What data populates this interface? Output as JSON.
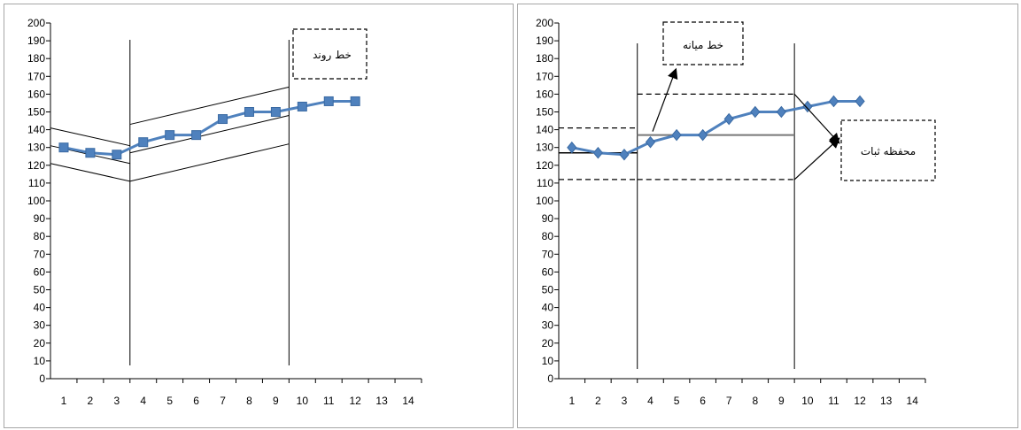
{
  "chart_data": [
    {
      "type": "line",
      "x": [
        1,
        2,
        3,
        4,
        5,
        6,
        7,
        8,
        9,
        10,
        11,
        12
      ],
      "series": [
        {
          "values": [
            130,
            127,
            126,
            133,
            137,
            137,
            146,
            150,
            150,
            153,
            156,
            156
          ],
          "marker": "square",
          "color": "#4f81bd"
        }
      ],
      "x_ticks": [
        1,
        2,
        3,
        4,
        5,
        6,
        7,
        8,
        9,
        10,
        11,
        12,
        13,
        14
      ],
      "xlim": [
        0.5,
        14.5
      ],
      "ylim": [
        0,
        200
      ],
      "y_ticks": [
        0,
        10,
        20,
        30,
        40,
        50,
        60,
        70,
        80,
        90,
        100,
        110,
        120,
        130,
        140,
        150,
        160,
        170,
        180,
        190,
        200
      ],
      "phase_lines_x": [
        3.5,
        9.5
      ],
      "trend_lines": [
        {
          "from": [
            0.5,
            141
          ],
          "to": [
            3.5,
            131
          ]
        },
        {
          "from": [
            0.5,
            131
          ],
          "to": [
            3.5,
            121
          ]
        },
        {
          "from": [
            0.5,
            121
          ],
          "to": [
            3.5,
            111
          ]
        },
        {
          "from": [
            3.5,
            143
          ],
          "to": [
            9.5,
            164
          ]
        },
        {
          "from": [
            3.5,
            127
          ],
          "to": [
            9.5,
            148
          ]
        },
        {
          "from": [
            3.5,
            111
          ],
          "to": [
            9.5,
            132
          ]
        }
      ],
      "annotations": [
        {
          "text": "خط روند",
          "points_to": null
        }
      ],
      "grid": false
    },
    {
      "type": "line",
      "x": [
        1,
        2,
        3,
        4,
        5,
        6,
        7,
        8,
        9,
        10,
        11,
        12
      ],
      "series": [
        {
          "values": [
            130,
            127,
            126,
            133,
            137,
            137,
            146,
            150,
            150,
            153,
            156,
            156
          ],
          "marker": "diamond",
          "color": "#4f81bd"
        }
      ],
      "x_ticks": [
        1,
        2,
        3,
        4,
        5,
        6,
        7,
        8,
        9,
        10,
        11,
        12,
        13,
        14
      ],
      "xlim": [
        0.5,
        14.5
      ],
      "ylim": [
        0,
        200
      ],
      "y_ticks": [
        0,
        10,
        20,
        30,
        40,
        50,
        60,
        70,
        80,
        90,
        100,
        110,
        120,
        130,
        140,
        150,
        160,
        170,
        180,
        190,
        200
      ],
      "phase_lines_x": [
        3.5,
        9.5
      ],
      "median_lines": [
        {
          "from": [
            0.5,
            127
          ],
          "to": [
            3.5,
            127
          ]
        },
        {
          "from": [
            3.5,
            137
          ],
          "to": [
            9.5,
            137
          ]
        }
      ],
      "stability_envelope": [
        {
          "from": [
            0.5,
            141
          ],
          "to": [
            3.5,
            141
          ]
        },
        {
          "from": [
            0.5,
            112
          ],
          "to": [
            3.5,
            112
          ]
        },
        {
          "from": [
            3.5,
            160
          ],
          "to": [
            9.5,
            160
          ]
        },
        {
          "from": [
            3.5,
            112
          ],
          "to": [
            9.5,
            112
          ]
        }
      ],
      "annotations": [
        {
          "text": "خط میانه",
          "points_to": "median_line"
        },
        {
          "text": "محفظه ثبات",
          "points_to": "stability_envelope"
        }
      ],
      "grid": false
    }
  ],
  "colors": {
    "series": "#4f81bd",
    "axis": "#000000",
    "border": "#a6a6a6"
  }
}
